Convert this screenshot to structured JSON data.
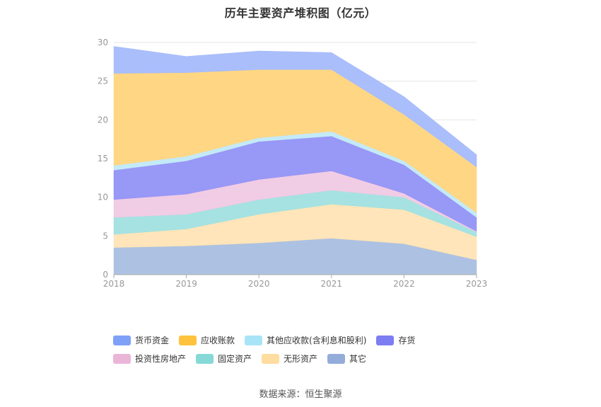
{
  "title": "历年主要资产堆积图（亿元）",
  "source": "数据来源：恒生聚源",
  "chart_data": {
    "type": "area",
    "stacked": true,
    "categories": [
      "2018",
      "2019",
      "2020",
      "2021",
      "2022",
      "2023"
    ],
    "ylim": [
      0,
      30
    ],
    "yticks": [
      0,
      5,
      10,
      15,
      20,
      25,
      30
    ],
    "grid": true,
    "legend_position": "bottom",
    "series": [
      {
        "name": "其它",
        "color": "#a6bce0",
        "values": [
          3.5,
          3.7,
          4.1,
          4.7,
          4.0,
          1.9
        ]
      },
      {
        "name": "无形资产",
        "color": "#ffe3b3",
        "values": [
          1.7,
          2.2,
          3.7,
          4.4,
          4.4,
          3.0
        ]
      },
      {
        "name": "固定资产",
        "color": "#9ee0df",
        "values": [
          2.2,
          1.9,
          1.9,
          1.8,
          1.6,
          0.6
        ]
      },
      {
        "name": "投资性房地产",
        "color": "#f0c8e3",
        "values": [
          2.3,
          2.6,
          2.6,
          2.5,
          0.5,
          0.1
        ]
      },
      {
        "name": "存货",
        "color": "#8f8ff5",
        "values": [
          3.8,
          4.3,
          4.9,
          4.5,
          3.7,
          1.8
        ]
      },
      {
        "name": "其他应收款(含利息和股利)",
        "color": "#bfe8f7",
        "values": [
          0.6,
          0.6,
          0.5,
          0.6,
          0.5,
          0.6
        ]
      },
      {
        "name": "应收账款",
        "color": "#ffd47a",
        "values": [
          11.9,
          10.8,
          8.8,
          8.0,
          6.0,
          5.9
        ]
      },
      {
        "name": "货币资金",
        "color": "#a3b9fb",
        "values": [
          3.5,
          2.1,
          2.4,
          2.2,
          2.3,
          1.6
        ]
      }
    ],
    "legend_order": [
      "货币资金",
      "应收账款",
      "其他应收款(含利息和股利)",
      "存货",
      "投资性房地产",
      "固定资产",
      "无形资产",
      "其它"
    ],
    "legend_colors": {
      "货币资金": "#7fa0f7",
      "应收账款": "#ffc23d",
      "其他应收款(含利息和股利)": "#a8e4f8",
      "存货": "#7d7df2",
      "投资性房地产": "#eab6d8",
      "固定资产": "#86d9d6",
      "无形资产": "#ffdca0",
      "其它": "#94acd9"
    }
  }
}
